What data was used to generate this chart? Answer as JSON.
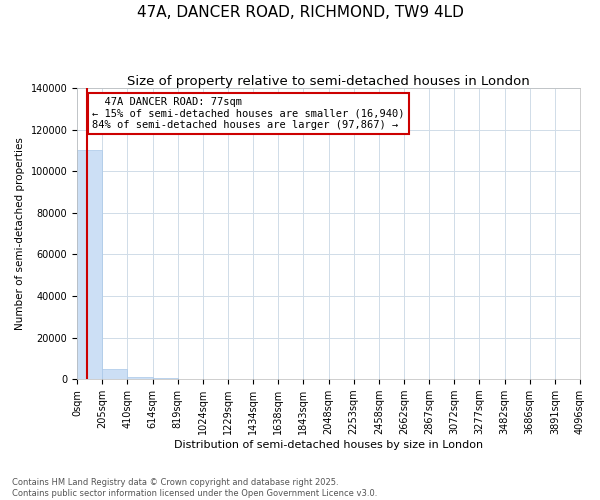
{
  "title": "47A, DANCER ROAD, RICHMOND, TW9 4LD",
  "subtitle": "Size of property relative to semi-detached houses in London",
  "xlabel": "Distribution of semi-detached houses by size in London",
  "ylabel": "Number of semi-detached properties",
  "bar_values": [
    110000,
    5000,
    800,
    300,
    150,
    100,
    70,
    50,
    40,
    30,
    25,
    20,
    18,
    15,
    12,
    10,
    8,
    7,
    5,
    4
  ],
  "bin_edges": [
    0,
    205,
    410,
    614,
    819,
    1024,
    1229,
    1434,
    1638,
    1843,
    2048,
    2253,
    2458,
    2662,
    2867,
    3072,
    3277,
    3482,
    3686,
    3891,
    4096
  ],
  "bar_color": "#ccdff5",
  "bar_edgecolor": "#aac8e8",
  "property_size": 77,
  "property_label": "47A DANCER ROAD: 77sqm",
  "pct_smaller": 15,
  "pct_larger": 84,
  "n_smaller": 16940,
  "n_larger": 97867,
  "vline_color": "#cc0000",
  "annotation_box_color": "#cc0000",
  "annotation_fontsize": 7.5,
  "title_fontsize": 11,
  "subtitle_fontsize": 9.5,
  "ylabel_fontsize": 7.5,
  "xlabel_fontsize": 8,
  "tick_fontsize": 7,
  "ylim": [
    0,
    140000
  ],
  "yticks": [
    0,
    20000,
    40000,
    60000,
    80000,
    100000,
    120000,
    140000
  ],
  "footer": "Contains HM Land Registry data © Crown copyright and database right 2025.\nContains public sector information licensed under the Open Government Licence v3.0.",
  "background_color": "#ffffff",
  "grid_color": "#d0dce8"
}
